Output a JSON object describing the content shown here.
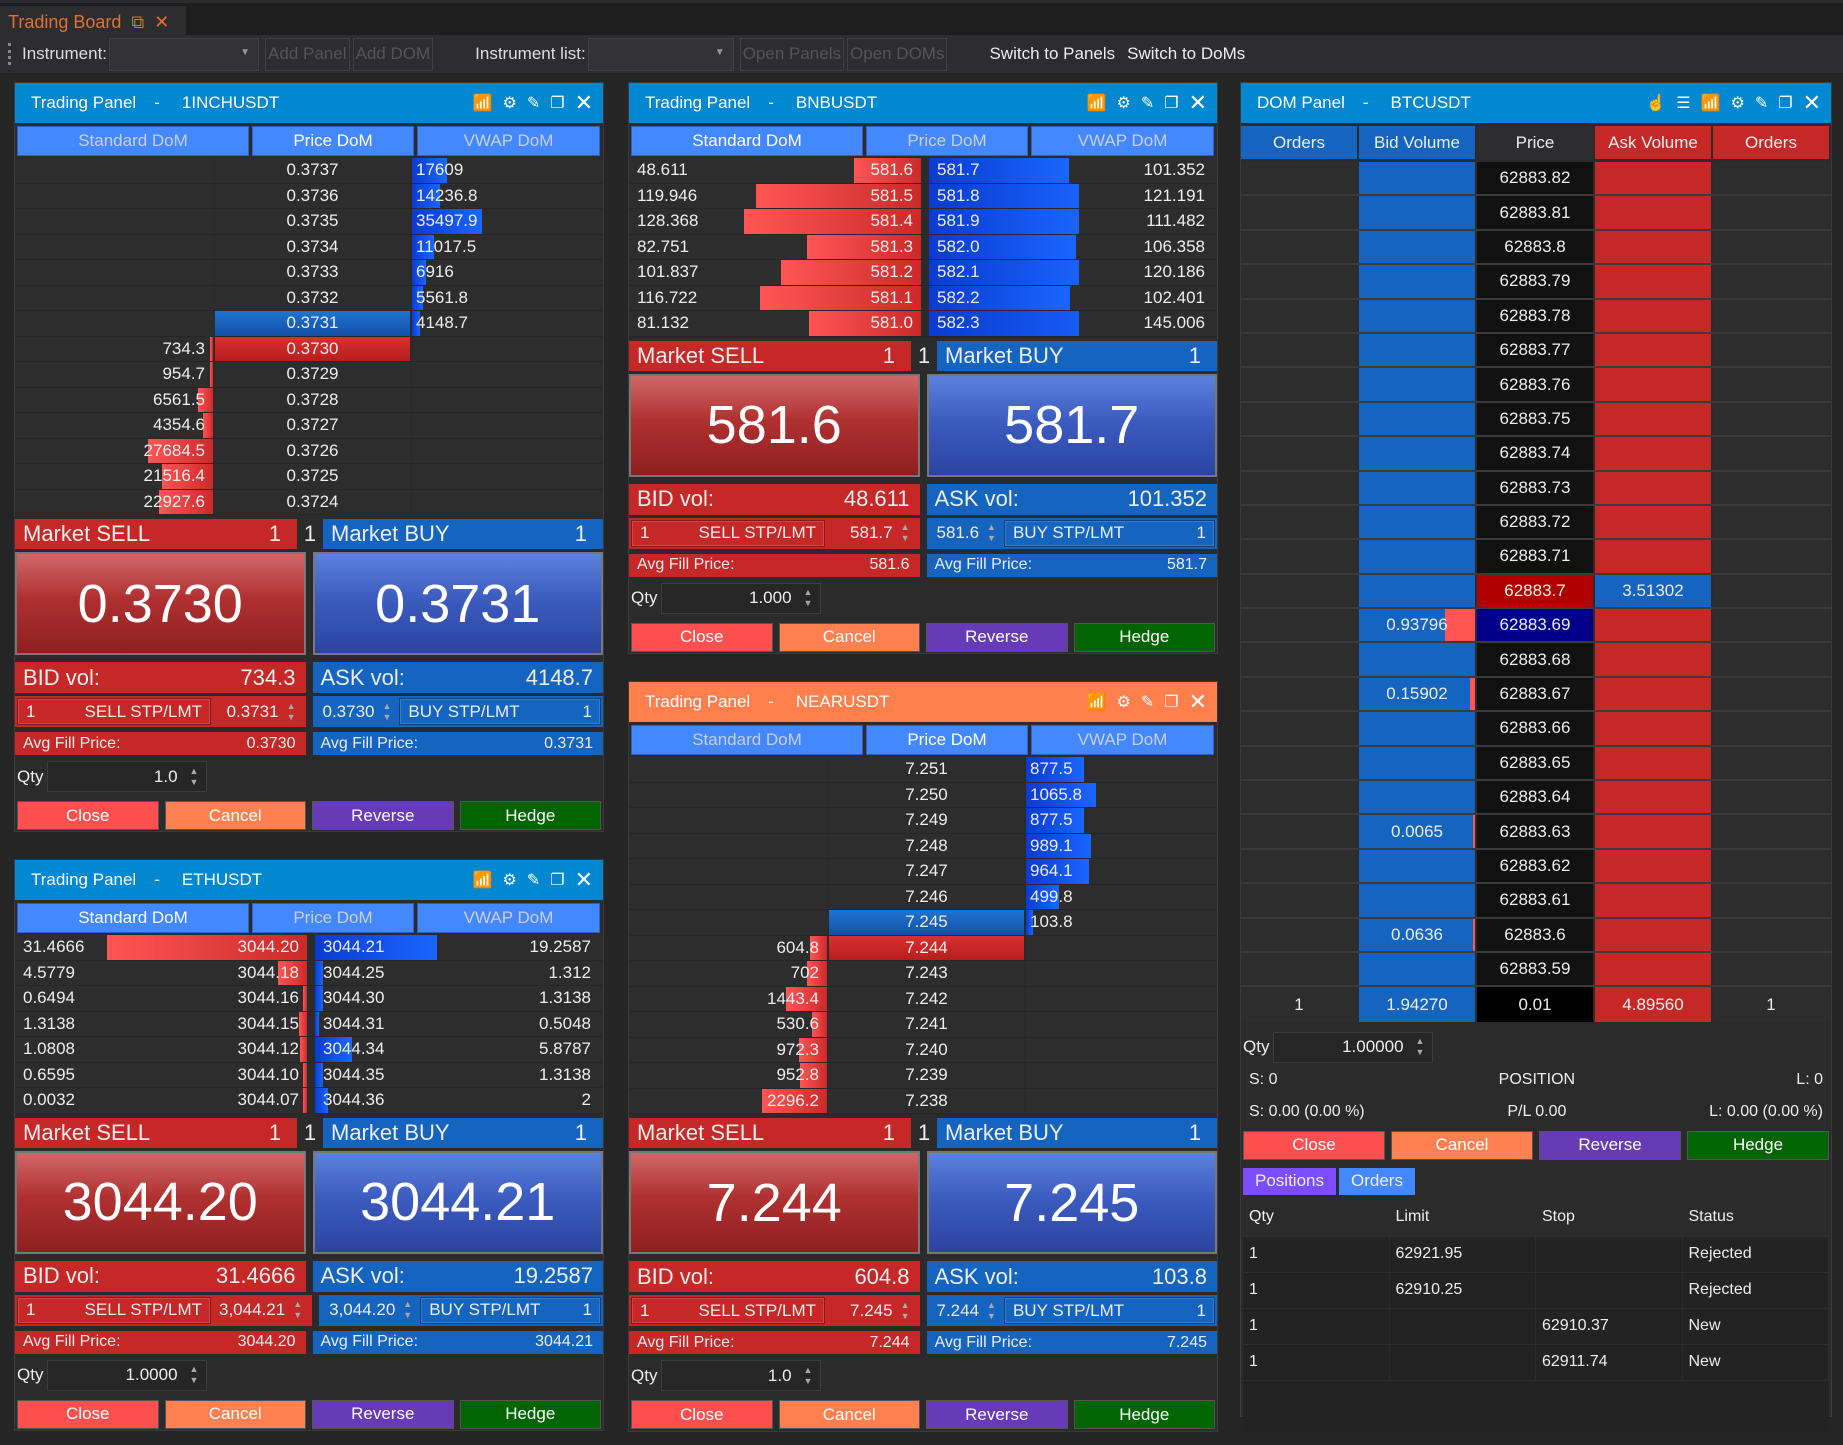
{
  "window": {
    "tab_title": "Trading Board"
  },
  "toolbar": {
    "instrument_label": "Instrument:",
    "add_panel": "Add Panel",
    "add_dom": "Add DOM",
    "instrument_list_label": "Instrument list:",
    "open_panels": "Open Panels",
    "open_doms": "Open DOMs",
    "switch_panels": "Switch to Panels",
    "switch_doms": "Switch to DoMs"
  },
  "colors": {
    "header_blue": "#0288d1",
    "header_orange": "#ff7f4d",
    "sell": "#c62828",
    "buy": "#1565c0"
  },
  "labels": {
    "market_sell": "Market SELL",
    "market_buy": "Market BUY",
    "bid_vol": "BID vol:",
    "ask_vol": "ASK vol:",
    "sell_stp": "SELL STP/LMT",
    "buy_stp": "BUY STP/LMT",
    "avg_fill": "Avg Fill Price:",
    "qty": "Qty",
    "close": "Close",
    "cancel": "Cancel",
    "reverse": "Reverse",
    "hedge": "Hedge",
    "dash": "-"
  },
  "panels": [
    {
      "id": "p1",
      "title": "Trading Panel",
      "symbol": "1INCHUSDT",
      "header": "blue",
      "tabs": [
        "Standard DoM",
        "Price DoM",
        "VWAP DoM"
      ],
      "active_tab": 1,
      "dom_type": "price",
      "rows": [
        [
          "",
          "0.3737",
          "17609"
        ],
        [
          "",
          "0.3736",
          "14236.8"
        ],
        [
          "",
          "0.3735",
          "35497.9"
        ],
        [
          "",
          "0.3734",
          "11017.5"
        ],
        [
          "",
          "0.3733",
          "6916"
        ],
        [
          "",
          "0.3732",
          "5561.8"
        ],
        [
          "",
          "0.3731",
          "4148.7"
        ],
        [
          "734.3",
          "0.3730",
          ""
        ],
        [
          "954.7",
          "0.3729",
          ""
        ],
        [
          "6561.5",
          "0.3728",
          ""
        ],
        [
          "4354.6",
          "0.3727",
          ""
        ],
        [
          "27684.5",
          "0.3726",
          ""
        ],
        [
          "21516.4",
          "0.3725",
          ""
        ],
        [
          "22927.6",
          "0.3724",
          ""
        ]
      ],
      "best_ask_row": 6,
      "best_bid_row": 7,
      "market_sell_qty": "1",
      "market_mid": "1",
      "market_buy_qty": "1",
      "bid_price": "0.3730",
      "ask_price": "0.3731",
      "bid_vol": "734.3",
      "ask_vol": "4148.7",
      "sell_stp_qty": "1",
      "sell_stp_price": "0.3731",
      "buy_stp_price": "0.3730",
      "buy_stp_qty": "1",
      "avg_sell": "0.3730",
      "avg_buy": "0.3731",
      "qty": "1.0"
    },
    {
      "id": "p2",
      "title": "Trading Panel",
      "symbol": "BNBUSDT",
      "header": "blue",
      "tabs": [
        "Standard DoM",
        "Price DoM",
        "VWAP DoM"
      ],
      "active_tab": 0,
      "dom_type": "standard",
      "rows": [
        [
          "48.611",
          "581.6",
          "581.7",
          "101.352"
        ],
        [
          "119.946",
          "581.5",
          "581.8",
          "121.191"
        ],
        [
          "128.368",
          "581.4",
          "581.9",
          "111.482"
        ],
        [
          "82.751",
          "581.3",
          "582.0",
          "106.358"
        ],
        [
          "101.837",
          "581.2",
          "582.1",
          "120.186"
        ],
        [
          "116.722",
          "581.1",
          "582.2",
          "102.401"
        ],
        [
          "81.132",
          "581.0",
          "582.3",
          "145.006"
        ]
      ],
      "market_sell_qty": "1",
      "market_mid": "1",
      "market_buy_qty": "1",
      "bid_price": "581.6",
      "ask_price": "581.7",
      "bid_vol": "48.611",
      "ask_vol": "101.352",
      "sell_stp_qty": "1",
      "sell_stp_price": "581.7",
      "buy_stp_price": "581.6",
      "buy_stp_qty": "1",
      "avg_sell": "581.6",
      "avg_buy": "581.7",
      "qty": "1.000"
    },
    {
      "id": "p3",
      "title": "Trading Panel",
      "symbol": "ETHUSDT",
      "header": "blue",
      "tabs": [
        "Standard DoM",
        "Price DoM",
        "VWAP DoM"
      ],
      "active_tab": 0,
      "dom_type": "standard",
      "rows": [
        [
          "31.4666",
          "3044.20",
          "3044.21",
          "19.2587"
        ],
        [
          "4.5779",
          "3044.18",
          "3044.25",
          "1.312"
        ],
        [
          "0.6494",
          "3044.16",
          "3044.30",
          "1.3138"
        ],
        [
          "1.3138",
          "3044.15",
          "3044.31",
          "0.5048"
        ],
        [
          "1.0808",
          "3044.12",
          "3044.34",
          "5.8787"
        ],
        [
          "0.6595",
          "3044.10",
          "3044.35",
          "1.3138"
        ],
        [
          "0.0032",
          "3044.07",
          "3044.36",
          "2"
        ]
      ],
      "market_sell_qty": "1",
      "market_mid": "1",
      "market_buy_qty": "1",
      "bid_price": "3044.20",
      "ask_price": "3044.21",
      "bid_vol": "31.4666",
      "ask_vol": "19.2587",
      "sell_stp_qty": "1",
      "sell_stp_price": "3,044.21",
      "buy_stp_price": "3,044.20",
      "buy_stp_qty": "1",
      "avg_sell": "3044.20",
      "avg_buy": "3044.21",
      "qty": "1.0000"
    },
    {
      "id": "p4",
      "title": "Trading Panel",
      "symbol": "NEARUSDT",
      "header": "orange",
      "tabs": [
        "Standard DoM",
        "Price DoM",
        "VWAP DoM"
      ],
      "active_tab": 1,
      "dom_type": "price",
      "rows": [
        [
          "",
          "7.251",
          "877.5"
        ],
        [
          "",
          "7.250",
          "1065.8"
        ],
        [
          "",
          "7.249",
          "877.5"
        ],
        [
          "",
          "7.248",
          "989.1"
        ],
        [
          "",
          "7.247",
          "964.1"
        ],
        [
          "",
          "7.246",
          "499.8"
        ],
        [
          "",
          "7.245",
          "103.8"
        ],
        [
          "604.8",
          "7.244",
          ""
        ],
        [
          "702",
          "7.243",
          ""
        ],
        [
          "1443.4",
          "7.242",
          ""
        ],
        [
          "530.6",
          "7.241",
          ""
        ],
        [
          "972.3",
          "7.240",
          ""
        ],
        [
          "952.8",
          "7.239",
          ""
        ],
        [
          "2296.2",
          "7.238",
          ""
        ]
      ],
      "best_ask_row": 6,
      "best_bid_row": 7,
      "market_sell_qty": "1",
      "market_mid": "1",
      "market_buy_qty": "1",
      "bid_price": "7.244",
      "ask_price": "7.245",
      "bid_vol": "604.8",
      "ask_vol": "103.8",
      "sell_stp_qty": "1",
      "sell_stp_price": "7.245",
      "buy_stp_price": "7.244",
      "buy_stp_qty": "1",
      "avg_sell": "7.244",
      "avg_buy": "7.245",
      "qty": "1.0"
    }
  ],
  "dom_panel": {
    "title": "DOM Panel",
    "symbol": "BTCUSDT",
    "columns": [
      "Orders",
      "Bid Volume",
      "Price",
      "Ask Volume",
      "Orders"
    ],
    "rows": [
      {
        "price": "62883.82"
      },
      {
        "price": "62883.81"
      },
      {
        "price": "62883.8"
      },
      {
        "price": "62883.79"
      },
      {
        "price": "62883.78"
      },
      {
        "price": "62883.77"
      },
      {
        "price": "62883.76"
      },
      {
        "price": "62883.75"
      },
      {
        "price": "62883.74"
      },
      {
        "price": "62883.73"
      },
      {
        "price": "62883.72"
      },
      {
        "price": "62883.71"
      },
      {
        "price": "62883.7",
        "ask": "3.51302",
        "state": "best_ask"
      },
      {
        "price": "62883.69",
        "bid": "0.93796",
        "state": "best_bid"
      },
      {
        "price": "62883.68"
      },
      {
        "price": "62883.67",
        "bid": "0.15902"
      },
      {
        "price": "62883.66"
      },
      {
        "price": "62883.65"
      },
      {
        "price": "62883.64"
      },
      {
        "price": "62883.63",
        "bid": "0.0065"
      },
      {
        "price": "62883.62"
      },
      {
        "price": "62883.61"
      },
      {
        "price": "62883.6",
        "bid": "0.0636"
      },
      {
        "price": "62883.59"
      }
    ],
    "footer": {
      "bid_orders": "1",
      "bid_total": "1.94270",
      "tick": "0.01",
      "ask_total": "4.89560",
      "ask_orders": "1"
    },
    "qty_label": "Qty",
    "qty": "1.00000",
    "position": {
      "s_count": "S:  0",
      "title": "POSITION",
      "l_count": "L:  0",
      "s_pl": "S:  0.00 (0.00 %)",
      "pl": "P/L 0.00",
      "l_pl": "L:  0.00 (0.00 %)"
    },
    "tabs": [
      "Positions",
      "Orders"
    ],
    "orders": {
      "columns": [
        "Qty",
        "Limit",
        "Stop",
        "Status"
      ],
      "rows": [
        [
          "1",
          "62921.95",
          "",
          "Rejected"
        ],
        [
          "1",
          "62910.25",
          "",
          "Rejected"
        ],
        [
          "1",
          "",
          "62910.37",
          "New"
        ],
        [
          "1",
          "",
          "62911.74",
          "New"
        ]
      ]
    }
  }
}
